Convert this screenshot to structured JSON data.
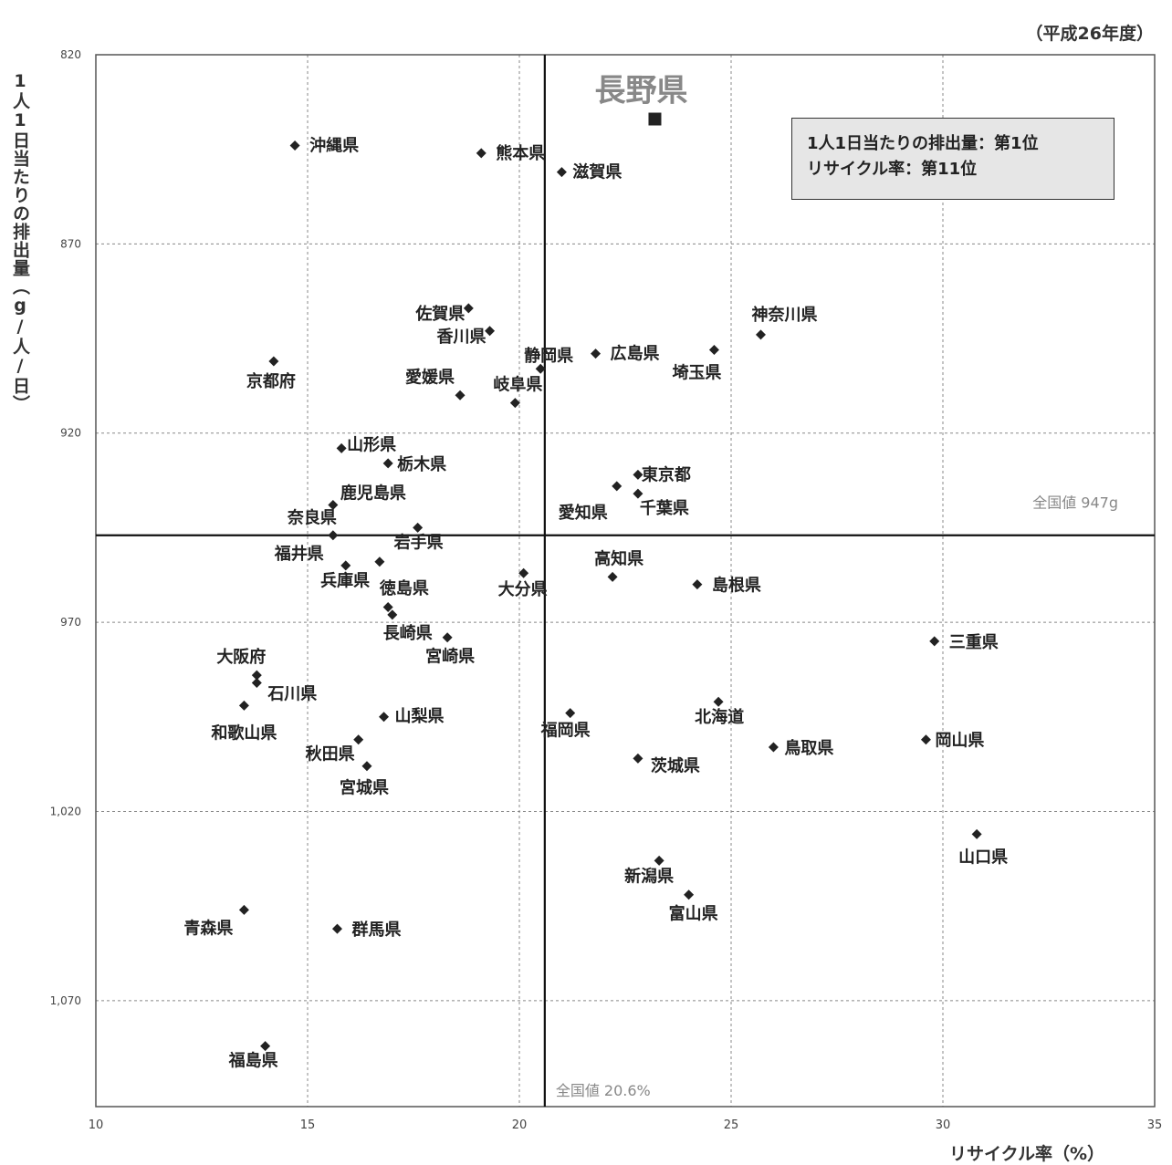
{
  "header": {
    "fiscal_year": "（平成26年度）"
  },
  "info_box": {
    "line1": "1人1日当たりの排出量：第1位",
    "line2": "リサイクル率：第11位"
  },
  "chart_data": {
    "type": "scatter",
    "title": "",
    "xlabel": "リサイクル率（%）",
    "ylabel": "1人1日当たりの排出量（g/人/日）",
    "xlim": [
      10,
      35
    ],
    "ylim": [
      1098,
      820
    ],
    "y_inverted": true,
    "x_ticks": [
      10,
      15,
      20,
      25,
      30,
      35
    ],
    "x_tick_labels": [
      "10",
      "15",
      "20",
      "25",
      "30",
      "35"
    ],
    "y_ticks": [
      820,
      870,
      920,
      970,
      1020,
      1070
    ],
    "y_tick_labels": [
      "820",
      "870",
      "920",
      "970",
      "1,020",
      "1,070"
    ],
    "grid": true,
    "reference_lines": {
      "national_recycling_rate": 20.6,
      "national_recycling_label": "全国値 20.6%",
      "national_emission": 947,
      "national_emission_label": "全国値 947g"
    },
    "highlight": {
      "name": "長野県",
      "x": 23.2,
      "y": 837
    },
    "points": [
      {
        "name": "沖縄県",
        "x": 14.7,
        "y": 844
      },
      {
        "name": "熊本県",
        "x": 19.1,
        "y": 846
      },
      {
        "name": "滋賀県",
        "x": 21.0,
        "y": 851
      },
      {
        "name": "佐賀県",
        "x": 18.8,
        "y": 887
      },
      {
        "name": "香川県",
        "x": 19.3,
        "y": 893
      },
      {
        "name": "神奈川県",
        "x": 25.7,
        "y": 894
      },
      {
        "name": "京都府",
        "x": 14.2,
        "y": 901
      },
      {
        "name": "静岡県",
        "x": 20.5,
        "y": 903
      },
      {
        "name": "広島県",
        "x": 21.8,
        "y": 899
      },
      {
        "name": "埼玉県",
        "x": 24.6,
        "y": 898
      },
      {
        "name": "愛媛県",
        "x": 18.6,
        "y": 910
      },
      {
        "name": "岐阜県",
        "x": 19.9,
        "y": 912
      },
      {
        "name": "山形県",
        "x": 15.8,
        "y": 924
      },
      {
        "name": "栃木県",
        "x": 16.9,
        "y": 928
      },
      {
        "name": "東京都",
        "x": 22.8,
        "y": 931
      },
      {
        "name": "愛知県",
        "x": 22.3,
        "y": 934
      },
      {
        "name": "千葉県",
        "x": 22.8,
        "y": 936
      },
      {
        "name": "鹿児島県",
        "x": 15.6,
        "y": 939
      },
      {
        "name": "奈良県",
        "x": 15.6,
        "y": 947
      },
      {
        "name": "岩手県",
        "x": 17.6,
        "y": 945
      },
      {
        "name": "福井県",
        "x": 15.9,
        "y": 955
      },
      {
        "name": "徳島県",
        "x": 16.7,
        "y": 954
      },
      {
        "name": "大分県",
        "x": 20.1,
        "y": 957
      },
      {
        "name": "高知県",
        "x": 22.2,
        "y": 958
      },
      {
        "name": "島根県",
        "x": 24.2,
        "y": 960
      },
      {
        "name": "兵庫県",
        "x": 16.9,
        "y": 966
      },
      {
        "name": "長崎県",
        "x": 17.0,
        "y": 968
      },
      {
        "name": "宮崎県",
        "x": 18.3,
        "y": 974
      },
      {
        "name": "三重県",
        "x": 29.8,
        "y": 975
      },
      {
        "name": "大阪府",
        "x": 13.8,
        "y": 984
      },
      {
        "name": "石川県",
        "x": 13.8,
        "y": 986
      },
      {
        "name": "北海道",
        "x": 24.7,
        "y": 991
      },
      {
        "name": "和歌山県",
        "x": 13.5,
        "y": 992
      },
      {
        "name": "山梨県",
        "x": 16.8,
        "y": 995
      },
      {
        "name": "福岡県",
        "x": 21.2,
        "y": 994
      },
      {
        "name": "秋田県",
        "x": 16.2,
        "y": 1001
      },
      {
        "name": "岡山県",
        "x": 29.6,
        "y": 1001
      },
      {
        "name": "鳥取県",
        "x": 26.0,
        "y": 1003
      },
      {
        "name": "茨城県",
        "x": 22.8,
        "y": 1006
      },
      {
        "name": "宮城県",
        "x": 16.4,
        "y": 1008
      },
      {
        "name": "山口県",
        "x": 30.8,
        "y": 1026
      },
      {
        "name": "新潟県",
        "x": 23.3,
        "y": 1033
      },
      {
        "name": "富山県",
        "x": 24.0,
        "y": 1042
      },
      {
        "name": "青森県",
        "x": 13.5,
        "y": 1046
      },
      {
        "name": "群馬県",
        "x": 15.7,
        "y": 1051
      },
      {
        "name": "福島県",
        "x": 14.0,
        "y": 1082
      }
    ]
  }
}
